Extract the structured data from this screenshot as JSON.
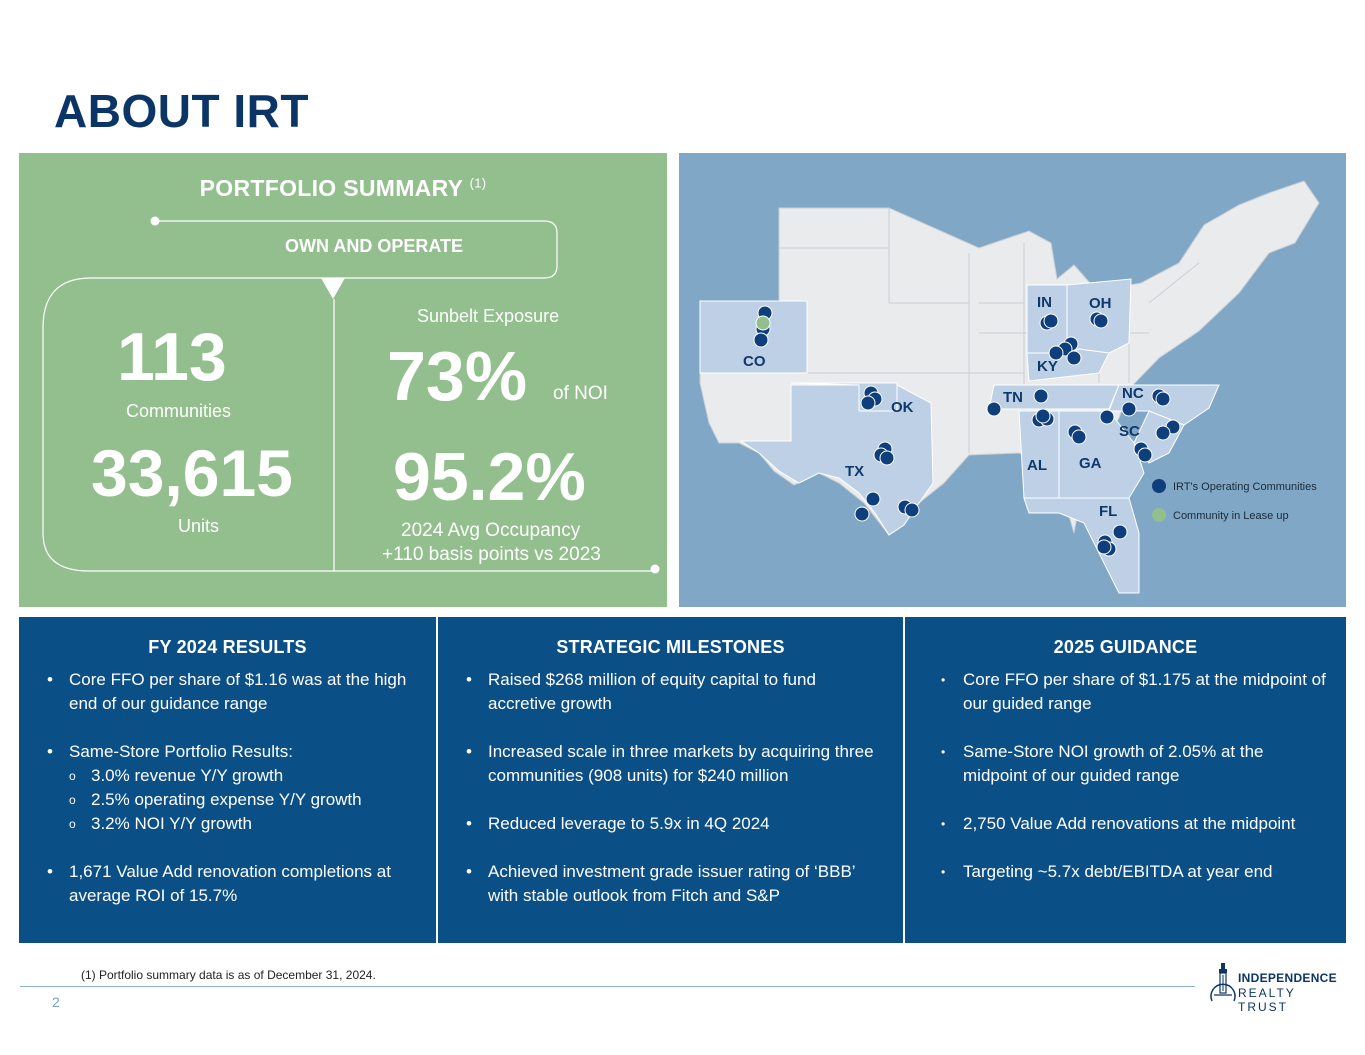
{
  "page": {
    "title": "ABOUT IRT",
    "page_number": "2"
  },
  "portfolio": {
    "heading": "PORTFOLIO SUMMARY",
    "heading_note": "(1)",
    "own_operate": "OWN AND OPERATE",
    "communities_value": "113",
    "communities_label": "Communities",
    "units_value": "33,615",
    "units_label": "Units",
    "sunbelt_label": "Sunbelt Exposure",
    "sunbelt_value": "73%",
    "sunbelt_suffix": "of NOI",
    "occupancy_value": "95.2%",
    "occupancy_label": "2024 Avg Occupancy",
    "occupancy_change": "+110 basis points vs 2023",
    "colors": {
      "panel": "#93bf8e",
      "text": "#ffffff"
    }
  },
  "map": {
    "state_labels": [
      "IN",
      "OH",
      "KY",
      "CO",
      "OK",
      "TN",
      "NC",
      "SC",
      "TX",
      "AL",
      "GA",
      "FL"
    ],
    "legend": {
      "operating": "IRT's Operating Communities",
      "lease_up": "Community in Lease up"
    },
    "colors": {
      "ocean": "#81a7c6",
      "land": "#e9ebec",
      "highlight": "#bed0e6",
      "dot": "#0e3f7c",
      "lease_up_dot": "#93bf8e"
    }
  },
  "results": {
    "heading": "FY 2024 RESULTS",
    "items": [
      "Core FFO per share of $1.16 was at the high end of our guidance range",
      "Same-Store Portfolio Results:",
      "1,671 Value Add renovation completions at average ROI of 15.7%"
    ],
    "sub_items": [
      "3.0% revenue Y/Y growth",
      "2.5% operating expense Y/Y growth",
      "3.2% NOI Y/Y growth"
    ]
  },
  "milestones": {
    "heading": "STRATEGIC MILESTONES",
    "items": [
      "Raised $268 million of equity capital to fund accretive growth",
      "Increased scale in three markets by acquiring three communities (908 units) for $240 million",
      "Reduced leverage to 5.9x in 4Q 2024",
      "Achieved investment grade issuer rating of ‘BBB’ with stable outlook from Fitch and S&P"
    ]
  },
  "guidance": {
    "heading": "2025 GUIDANCE",
    "items": [
      "Core FFO per share of $1.175 at the midpoint of our guided range",
      "Same-Store NOI growth of 2.05% at the midpoint of our guided range",
      "2,750 Value Add renovations at the midpoint",
      "Targeting ~5.7x debt/EBITDA at year end"
    ]
  },
  "footer": {
    "footnote": "(1) Portfolio summary data is as of December 31, 2024.",
    "logo_line1": "INDEPENDENCE",
    "logo_line2": "REALTY TRUST"
  }
}
